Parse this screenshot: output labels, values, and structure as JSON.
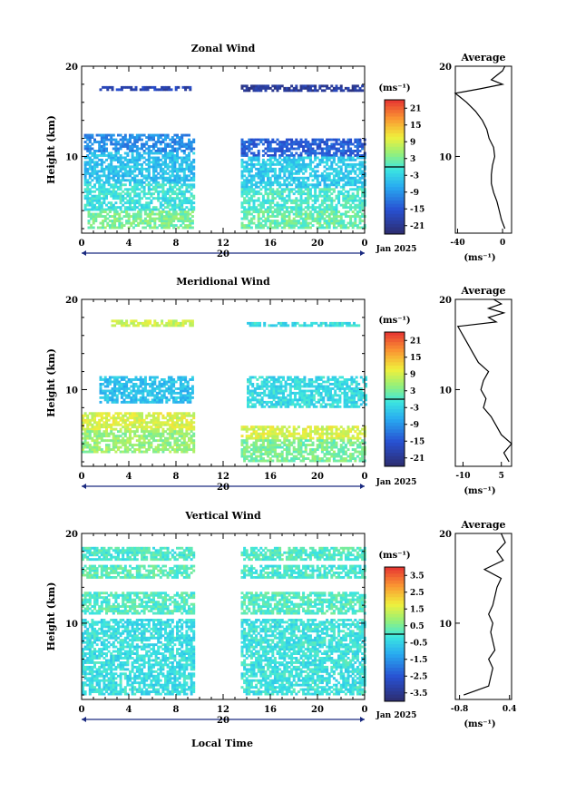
{
  "figure": {
    "date_label": "Jan 2025",
    "day_label": "20",
    "xlabel": "Local Time",
    "unit_label": "(ms⁻¹)",
    "avg_title": "Average"
  },
  "chart_data": [
    {
      "type": "heatmap",
      "title": "Zonal Wind",
      "ylabel": "Height (km)",
      "x_ticks": [
        "0",
        "4",
        "8",
        "12",
        "16",
        "20",
        "0"
      ],
      "xlim": [
        0,
        24
      ],
      "y_ticks": [
        "10",
        "20"
      ],
      "ylim": [
        1.5,
        20
      ],
      "colorbar": {
        "ticks": [
          "21",
          "15",
          "9",
          "3",
          "-3",
          "-9",
          "-15",
          "-21"
        ],
        "range": [
          -24,
          24
        ]
      },
      "data_gaps_hours": [
        [
          9.5,
          13.5
        ]
      ],
      "layers": [
        {
          "x0": 1.5,
          "x1": 9.5,
          "y0": 17.3,
          "y1": 17.7,
          "v": -18
        },
        {
          "x0": 13.5,
          "x1": 23.8,
          "y0": 17.2,
          "y1": 17.9,
          "v": -20
        },
        {
          "x0": 0.2,
          "x1": 9.5,
          "y0": 10.5,
          "y1": 12.5,
          "v": -10
        },
        {
          "x0": 13.5,
          "x1": 24,
          "y0": 10.0,
          "y1": 12.0,
          "v": -14
        },
        {
          "x0": 0.2,
          "x1": 9.5,
          "y0": 7.0,
          "y1": 10.5,
          "v": -5
        },
        {
          "x0": 13.5,
          "x1": 24,
          "y0": 6.5,
          "y1": 10.0,
          "v": -4
        },
        {
          "x0": 0.2,
          "x1": 9.5,
          "y0": 4.0,
          "y1": 7.0,
          "v": -1
        },
        {
          "x0": 13.5,
          "x1": 24,
          "y0": 4.0,
          "y1": 6.5,
          "v": 0
        },
        {
          "x0": 0.5,
          "x1": 9.5,
          "y0": 2.0,
          "y1": 4.0,
          "v": 3
        },
        {
          "x0": 13.5,
          "x1": 24,
          "y0": 2.0,
          "y1": 4.0,
          "v": 2
        }
      ],
      "average": {
        "x_ticks": [
          "-40",
          "0"
        ],
        "xlim": [
          -42,
          8
        ],
        "heights": [
          2,
          3,
          4,
          5,
          6,
          7,
          8,
          9,
          10,
          11,
          12,
          13,
          14,
          15,
          16,
          17,
          17.5,
          18,
          18.5,
          19,
          19.5,
          20
        ],
        "values": [
          2,
          -1,
          -3,
          -5,
          -8,
          -10,
          -10,
          -9,
          -7,
          -8,
          -12,
          -14,
          -18,
          -24,
          -32,
          -42,
          -20,
          0,
          -10,
          -5,
          0,
          2
        ]
      }
    },
    {
      "type": "heatmap",
      "title": "Meridional Wind",
      "ylabel": "Height (km)",
      "x_ticks": [
        "0",
        "4",
        "8",
        "12",
        "16",
        "20",
        "0"
      ],
      "xlim": [
        0,
        24
      ],
      "y_ticks": [
        "10",
        "20"
      ],
      "ylim": [
        1.5,
        20
      ],
      "colorbar": {
        "ticks": [
          "21",
          "15",
          "9",
          "3",
          "-3",
          "-9",
          "-15",
          "-21"
        ],
        "range": [
          -24,
          24
        ]
      },
      "data_gaps_hours": [
        [
          9.5,
          13.5
        ]
      ],
      "layers": [
        {
          "x0": 2.5,
          "x1": 9.5,
          "y0": 17.0,
          "y1": 17.6,
          "v": 8
        },
        {
          "x0": 14,
          "x1": 23.5,
          "y0": 17.0,
          "y1": 17.4,
          "v": -2
        },
        {
          "x0": 1.5,
          "x1": 9.5,
          "y0": 8.5,
          "y1": 11.5,
          "v": -5
        },
        {
          "x0": 14,
          "x1": 24,
          "y0": 8.0,
          "y1": 11.5,
          "v": -2
        },
        {
          "x0": 0,
          "x1": 9.5,
          "y0": 5.5,
          "y1": 7.5,
          "v": 9
        },
        {
          "x0": 13.5,
          "x1": 24,
          "y0": 4.5,
          "y1": 6.0,
          "v": 9
        },
        {
          "x0": 0,
          "x1": 9.5,
          "y0": 3.0,
          "y1": 5.5,
          "v": 5
        },
        {
          "x0": 13.5,
          "x1": 24,
          "y0": 2.0,
          "y1": 4.5,
          "v": 3
        }
      ],
      "average": {
        "x_ticks": [
          "-10",
          "5"
        ],
        "xlim": [
          -13,
          9
        ],
        "heights": [
          2,
          3,
          4,
          5,
          6,
          7,
          8,
          9,
          10,
          11,
          12,
          13,
          14,
          15,
          16,
          17,
          17.5,
          18,
          18.5,
          19,
          19.5,
          20
        ],
        "values": [
          8,
          6,
          9,
          5,
          3,
          1,
          -2,
          -1,
          -3,
          -2,
          0,
          -4,
          -6,
          -8,
          -10,
          -12,
          3,
          0,
          6,
          0,
          5,
          2
        ]
      }
    },
    {
      "type": "heatmap",
      "title": "Vertical Wind",
      "ylabel": "Height (km)",
      "xlabel": "Local Time",
      "x_ticks": [
        "0",
        "4",
        "8",
        "12",
        "16",
        "20",
        "0"
      ],
      "xlim": [
        0,
        24
      ],
      "y_ticks": [
        "10",
        "20"
      ],
      "ylim": [
        1.5,
        20
      ],
      "colorbar": {
        "ticks": [
          "3.5",
          "2.5",
          "1.5",
          "0.5",
          "-0.5",
          "-1.5",
          "-2.5",
          "-3.5"
        ],
        "range": [
          -4,
          4
        ]
      },
      "data_gaps_hours": [
        [
          9.5,
          13.5
        ]
      ],
      "layers": [
        {
          "x0": 0,
          "x1": 9.5,
          "y0": 17.0,
          "y1": 18.3,
          "v": 0.0
        },
        {
          "x0": 13.5,
          "x1": 24,
          "y0": 17.0,
          "y1": 18.5,
          "v": 0.1
        },
        {
          "x0": 0,
          "x1": 9.5,
          "y0": 15.0,
          "y1": 16.5,
          "v": 0.2
        },
        {
          "x0": 13.5,
          "x1": 24,
          "y0": 15.0,
          "y1": 16.5,
          "v": 0.0
        },
        {
          "x0": 0,
          "x1": 9.5,
          "y0": 11.0,
          "y1": 13.5,
          "v": 0.1
        },
        {
          "x0": 13.5,
          "x1": 24,
          "y0": 11.0,
          "y1": 13.5,
          "v": 0.1
        },
        {
          "x0": 0,
          "x1": 9.5,
          "y0": 2.0,
          "y1": 10.5,
          "v": -0.3
        },
        {
          "x0": 13.5,
          "x1": 24,
          "y0": 2.0,
          "y1": 10.5,
          "v": -0.2
        }
      ],
      "average": {
        "x_ticks": [
          "-0.8",
          "0.4"
        ],
        "xlim": [
          -0.9,
          0.45
        ],
        "heights": [
          2,
          3,
          4,
          5,
          6,
          7,
          8,
          9,
          10,
          11,
          12,
          13,
          14,
          15,
          16,
          17,
          18,
          19,
          20
        ],
        "values": [
          -0.7,
          -0.1,
          -0.05,
          0.0,
          -0.1,
          0.05,
          0.0,
          -0.05,
          0.0,
          -0.1,
          0.0,
          0.05,
          0.1,
          0.2,
          -0.2,
          0.25,
          0.1,
          0.3,
          0.2
        ]
      }
    }
  ]
}
